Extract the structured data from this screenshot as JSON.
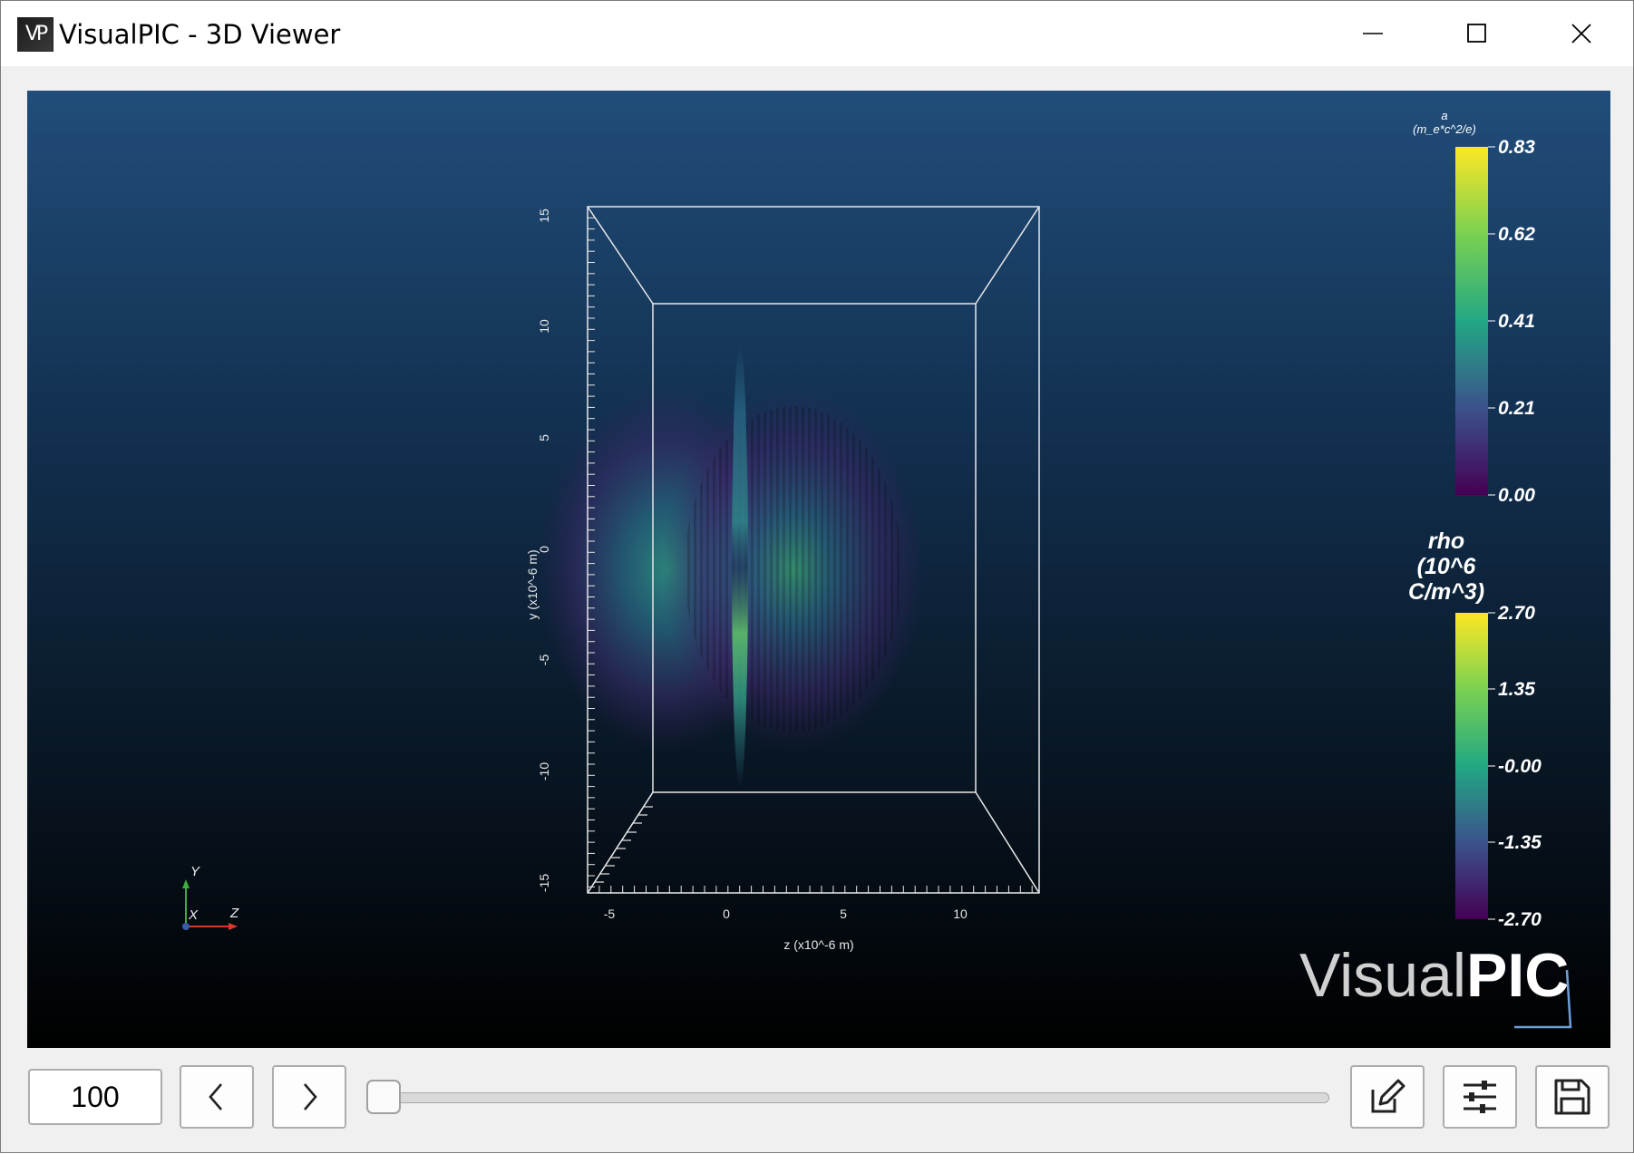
{
  "window": {
    "icon_label": "VP",
    "title": "VisualPIC - 3D Viewer",
    "minimize_glyph": "—",
    "maximize_glyph": "☐",
    "close_glyph": "✕"
  },
  "viewer": {
    "background_top": "#214d7a",
    "background_bottom": "#000000",
    "z_axis": {
      "label": "z (x10^-6 m)",
      "ticks": [
        "-5",
        "0",
        "5",
        "10"
      ]
    },
    "y_axis": {
      "label": "y (x10^-6 m)",
      "ticks": [
        "15",
        "10",
        "5",
        "0",
        "-5",
        "-10",
        "-15"
      ]
    },
    "orientation": {
      "y": "Y",
      "x": "X",
      "z": "Z"
    },
    "colorbar_a": {
      "title_line1": "a",
      "title_line2": "(m_e*c^2/e)",
      "ticks": [
        "0.83",
        "0.62",
        "0.41",
        "0.21",
        "0.00"
      ]
    },
    "colorbar_rho": {
      "title_line1": "rho",
      "title_line2": "(10^6",
      "title_line3": "C/m^3)",
      "ticks": [
        "2.70",
        "1.35",
        "-0.00",
        "-1.35",
        "-2.70"
      ]
    },
    "watermark": {
      "part1": "Visual",
      "part2": "PIC"
    }
  },
  "controls": {
    "frame_value": "100",
    "prev_icon": "chevron-left-icon",
    "next_icon": "chevron-right-icon",
    "timeline_progress": 0.0,
    "edit_icon": "edit-icon",
    "settings_icon": "sliders-icon",
    "save_icon": "save-icon"
  }
}
